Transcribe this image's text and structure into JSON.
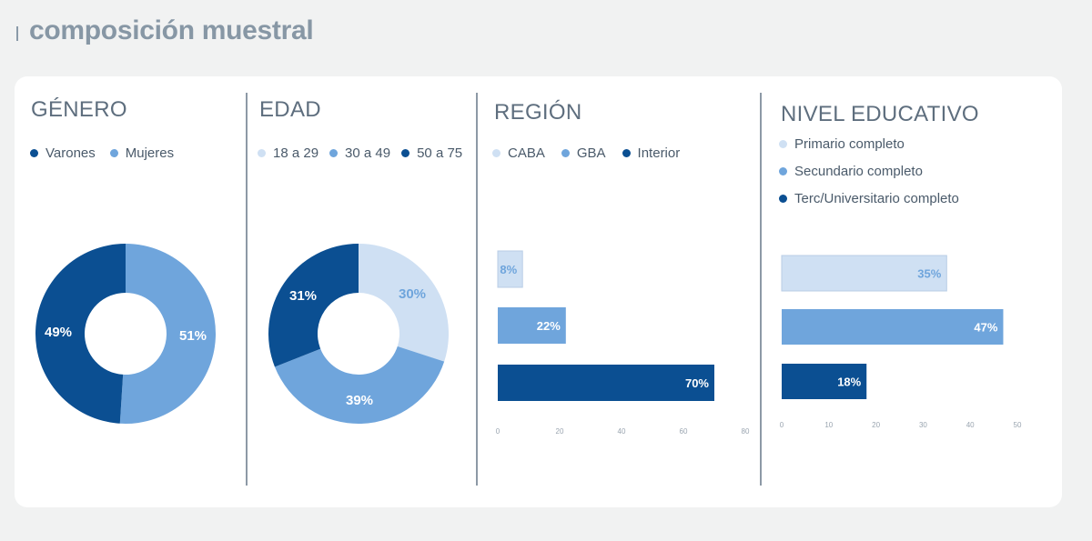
{
  "page": {
    "title": "composición muestral"
  },
  "colors": {
    "light": "#cfe0f3",
    "mid": "#6fa5dc",
    "dark": "#0b4f92",
    "axis": "#9aa5b0"
  },
  "panels": {
    "genero": {
      "title": "GÉNERO",
      "legend": [
        {
          "label": "Varones",
          "color": "#0b4f92"
        },
        {
          "label": "Mujeres",
          "color": "#6fa5dc"
        }
      ]
    },
    "edad": {
      "title": "EDAD",
      "legend": [
        {
          "label": "18 a 29",
          "color": "#cfe0f3"
        },
        {
          "label": "30 a 49",
          "color": "#6fa5dc"
        },
        {
          "label": "50 a 75",
          "color": "#0b4f92"
        }
      ]
    },
    "region": {
      "title": "REGIÓN",
      "legend": [
        {
          "label": "CABA",
          "color": "#cfe0f3"
        },
        {
          "label": "GBA",
          "color": "#6fa5dc"
        },
        {
          "label": "Interior",
          "color": "#0b4f92"
        }
      ]
    },
    "nivel": {
      "title": "NIVEL EDUCATIVO",
      "legend": [
        {
          "label": "Primario completo",
          "color": "#cfe0f3"
        },
        {
          "label": "Secundario completo",
          "color": "#6fa5dc"
        },
        {
          "label": "Terc/Universitario completo",
          "color": "#0b4f92"
        }
      ]
    }
  },
  "chart_data": [
    {
      "type": "pie",
      "title": "GÉNERO",
      "categories": [
        "Varones",
        "Mujeres"
      ],
      "values": [
        49,
        51
      ],
      "labels": [
        "49%",
        "51%"
      ],
      "donut": true
    },
    {
      "type": "pie",
      "title": "EDAD",
      "categories": [
        "18 a 29",
        "30 a 49",
        "50 a 75"
      ],
      "values": [
        30,
        39,
        31
      ],
      "labels": [
        "30%",
        "39%",
        "31%"
      ],
      "donut": true
    },
    {
      "type": "bar",
      "orientation": "horizontal",
      "title": "REGIÓN",
      "categories": [
        "CABA",
        "GBA",
        "Interior"
      ],
      "values": [
        8,
        22,
        70
      ],
      "labels": [
        "8%",
        "22%",
        "70%"
      ],
      "xlim": [
        0,
        80
      ],
      "xticks": [
        "0",
        "20",
        "40",
        "60",
        "80"
      ]
    },
    {
      "type": "bar",
      "orientation": "horizontal",
      "title": "NIVEL EDUCATIVO",
      "categories": [
        "Primario completo",
        "Secundario completo",
        "Terc/Universitario completo"
      ],
      "values": [
        35,
        47,
        18
      ],
      "labels": [
        "35%",
        "47%",
        "18%"
      ],
      "xlim": [
        0,
        50
      ],
      "xticks": [
        "0",
        "10",
        "20",
        "30",
        "40",
        "50"
      ]
    }
  ]
}
